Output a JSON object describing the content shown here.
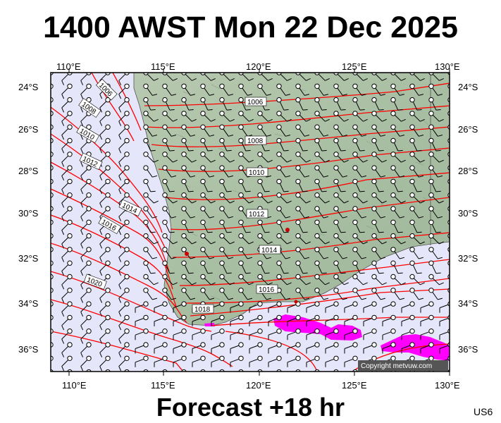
{
  "title": "1400 AWST Mon 22 Dec 2025",
  "forecast_label": "Forecast +18 hr",
  "region_code": "US6",
  "copyright": "Copyright metvuw.com",
  "colors": {
    "ocean": "#e6e6fa",
    "land": "#a9bfa3",
    "isobar": "#ff0000",
    "rain": "#ff00ff",
    "station": "#cc0000"
  },
  "longitude_labels": [
    "110°E",
    "115°E",
    "120°E",
    "125°E",
    "130°E"
  ],
  "latitude_labels": [
    "24°S",
    "26°S",
    "28°S",
    "30°S",
    "32°S",
    "34°S",
    "36°S"
  ],
  "isobar_labels": [
    "1006",
    "1008",
    "1010",
    "1012",
    "1014",
    "1016",
    "1020",
    "1006",
    "1008",
    "1010",
    "1012",
    "1014",
    "1016",
    "1018"
  ]
}
